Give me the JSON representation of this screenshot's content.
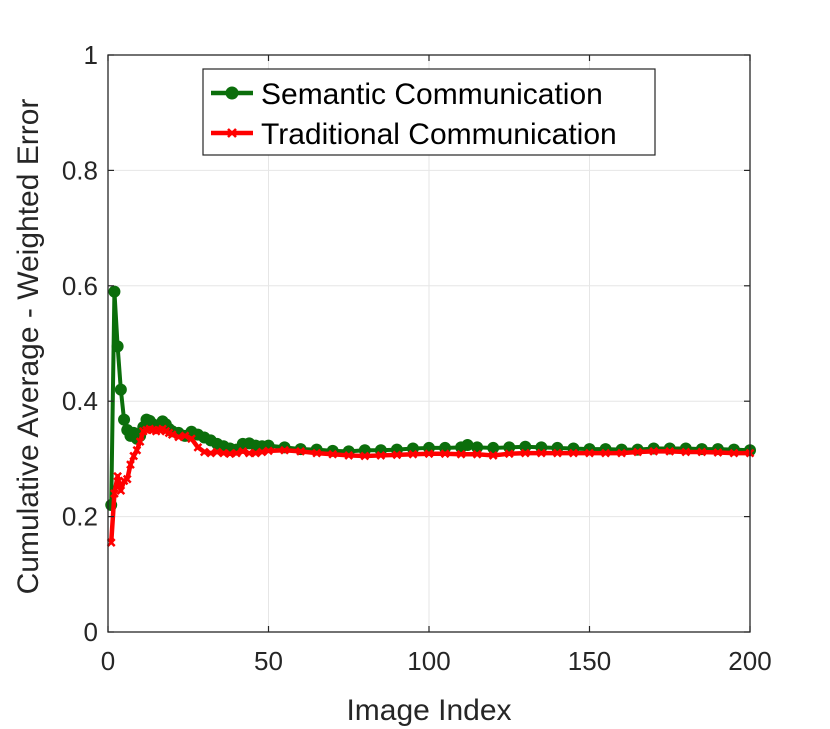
{
  "chart_data": {
    "type": "line",
    "xlabel": "Image Index",
    "ylabel": "Cumulative Average - Weighted Error",
    "xlim": [
      0,
      200
    ],
    "ylim": [
      0,
      1
    ],
    "xticks": [
      "0",
      "50",
      "100",
      "150",
      "200"
    ],
    "yticks": [
      "0",
      "0.2",
      "0.4",
      "0.6",
      "0.8",
      "1"
    ],
    "grid": true,
    "legend_position": "top-center",
    "series": [
      {
        "name": "Semantic Communication",
        "color": "#0b6e0b",
        "marker": "circle",
        "points": [
          [
            1,
            0.22
          ],
          [
            2,
            0.59
          ],
          [
            3,
            0.495
          ],
          [
            4,
            0.42
          ],
          [
            5,
            0.368
          ],
          [
            6,
            0.35
          ],
          [
            7,
            0.34
          ],
          [
            8,
            0.345
          ],
          [
            9,
            0.335
          ],
          [
            10,
            0.34
          ],
          [
            11,
            0.355
          ],
          [
            12,
            0.368
          ],
          [
            13,
            0.366
          ],
          [
            14,
            0.36
          ],
          [
            15,
            0.355
          ],
          [
            16,
            0.358
          ],
          [
            17,
            0.365
          ],
          [
            18,
            0.36
          ],
          [
            19,
            0.352
          ],
          [
            20,
            0.348
          ],
          [
            22,
            0.345
          ],
          [
            24,
            0.34
          ],
          [
            26,
            0.347
          ],
          [
            28,
            0.342
          ],
          [
            30,
            0.337
          ],
          [
            32,
            0.332
          ],
          [
            34,
            0.326
          ],
          [
            36,
            0.322
          ],
          [
            38,
            0.318
          ],
          [
            40,
            0.316
          ],
          [
            42,
            0.326
          ],
          [
            44,
            0.327
          ],
          [
            46,
            0.323
          ],
          [
            48,
            0.322
          ],
          [
            50,
            0.323
          ],
          [
            55,
            0.32
          ],
          [
            60,
            0.317
          ],
          [
            65,
            0.316
          ],
          [
            70,
            0.314
          ],
          [
            75,
            0.313
          ],
          [
            80,
            0.315
          ],
          [
            85,
            0.315
          ],
          [
            90,
            0.316
          ],
          [
            95,
            0.318
          ],
          [
            100,
            0.319
          ],
          [
            105,
            0.319
          ],
          [
            110,
            0.32
          ],
          [
            112,
            0.324
          ],
          [
            115,
            0.32
          ],
          [
            120,
            0.319
          ],
          [
            125,
            0.32
          ],
          [
            130,
            0.321
          ],
          [
            135,
            0.32
          ],
          [
            140,
            0.319
          ],
          [
            145,
            0.318
          ],
          [
            150,
            0.317
          ],
          [
            155,
            0.317
          ],
          [
            160,
            0.316
          ],
          [
            165,
            0.316
          ],
          [
            170,
            0.318
          ],
          [
            175,
            0.318
          ],
          [
            180,
            0.318
          ],
          [
            185,
            0.317
          ],
          [
            190,
            0.317
          ],
          [
            195,
            0.316
          ],
          [
            200,
            0.315
          ]
        ]
      },
      {
        "name": "Traditional Communication",
        "color": "#ff0000",
        "marker": "x",
        "points": [
          [
            1,
            0.155
          ],
          [
            2,
            0.24
          ],
          [
            3,
            0.27
          ],
          [
            4,
            0.245
          ],
          [
            5,
            0.262
          ],
          [
            6,
            0.265
          ],
          [
            7,
            0.29
          ],
          [
            8,
            0.305
          ],
          [
            9,
            0.315
          ],
          [
            10,
            0.33
          ],
          [
            11,
            0.348
          ],
          [
            12,
            0.35
          ],
          [
            13,
            0.352
          ],
          [
            14,
            0.35
          ],
          [
            15,
            0.348
          ],
          [
            16,
            0.35
          ],
          [
            17,
            0.352
          ],
          [
            18,
            0.348
          ],
          [
            19,
            0.345
          ],
          [
            20,
            0.342
          ],
          [
            22,
            0.338
          ],
          [
            24,
            0.34
          ],
          [
            26,
            0.335
          ],
          [
            28,
            0.32
          ],
          [
            30,
            0.312
          ],
          [
            32,
            0.31
          ],
          [
            34,
            0.312
          ],
          [
            36,
            0.31
          ],
          [
            38,
            0.309
          ],
          [
            40,
            0.31
          ],
          [
            42,
            0.313
          ],
          [
            44,
            0.31
          ],
          [
            46,
            0.31
          ],
          [
            48,
            0.312
          ],
          [
            50,
            0.314
          ],
          [
            55,
            0.315
          ],
          [
            60,
            0.313
          ],
          [
            65,
            0.31
          ],
          [
            70,
            0.308
          ],
          [
            75,
            0.306
          ],
          [
            80,
            0.305
          ],
          [
            85,
            0.306
          ],
          [
            90,
            0.307
          ],
          [
            95,
            0.308
          ],
          [
            100,
            0.309
          ],
          [
            105,
            0.309
          ],
          [
            110,
            0.308
          ],
          [
            115,
            0.308
          ],
          [
            120,
            0.306
          ],
          [
            125,
            0.309
          ],
          [
            130,
            0.31
          ],
          [
            135,
            0.31
          ],
          [
            140,
            0.31
          ],
          [
            145,
            0.31
          ],
          [
            150,
            0.31
          ],
          [
            155,
            0.31
          ],
          [
            160,
            0.31
          ],
          [
            165,
            0.312
          ],
          [
            170,
            0.313
          ],
          [
            175,
            0.313
          ],
          [
            180,
            0.312
          ],
          [
            185,
            0.312
          ],
          [
            190,
            0.311
          ],
          [
            195,
            0.31
          ],
          [
            200,
            0.31
          ]
        ]
      }
    ]
  }
}
